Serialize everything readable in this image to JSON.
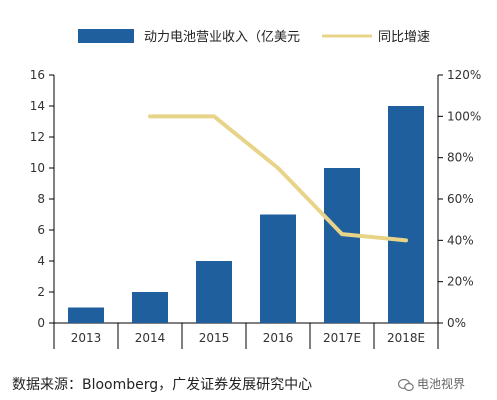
{
  "chart_data": {
    "type": "bar",
    "categories": [
      "2013",
      "2014",
      "2015",
      "2016",
      "2017E",
      "2018E"
    ],
    "series": [
      {
        "name": "动力电池营业收入（亿美元",
        "type": "bar",
        "axis": "left",
        "color": "#1f5f9e",
        "values": [
          1,
          2,
          4,
          7,
          10,
          14
        ]
      },
      {
        "name": "同比增速",
        "type": "line",
        "axis": "right",
        "color": "#e8d488",
        "values": [
          null,
          100,
          100,
          75,
          43,
          40
        ]
      }
    ],
    "y_left": {
      "min": 0,
      "max": 16,
      "ticks": [
        "0",
        "2",
        "4",
        "6",
        "8",
        "10",
        "12",
        "14",
        "16"
      ]
    },
    "y_right": {
      "min": 0,
      "max": 120,
      "ticks": [
        "0%",
        "20%",
        "40%",
        "60%",
        "80%",
        "100%",
        "120%"
      ]
    },
    "legend_position": "top",
    "grid": false
  },
  "footer": {
    "source": "数据来源：Bloomberg，广发证券发展研究中心",
    "watermark": "电池视界",
    "watermark_icon": "wechat-icon"
  }
}
